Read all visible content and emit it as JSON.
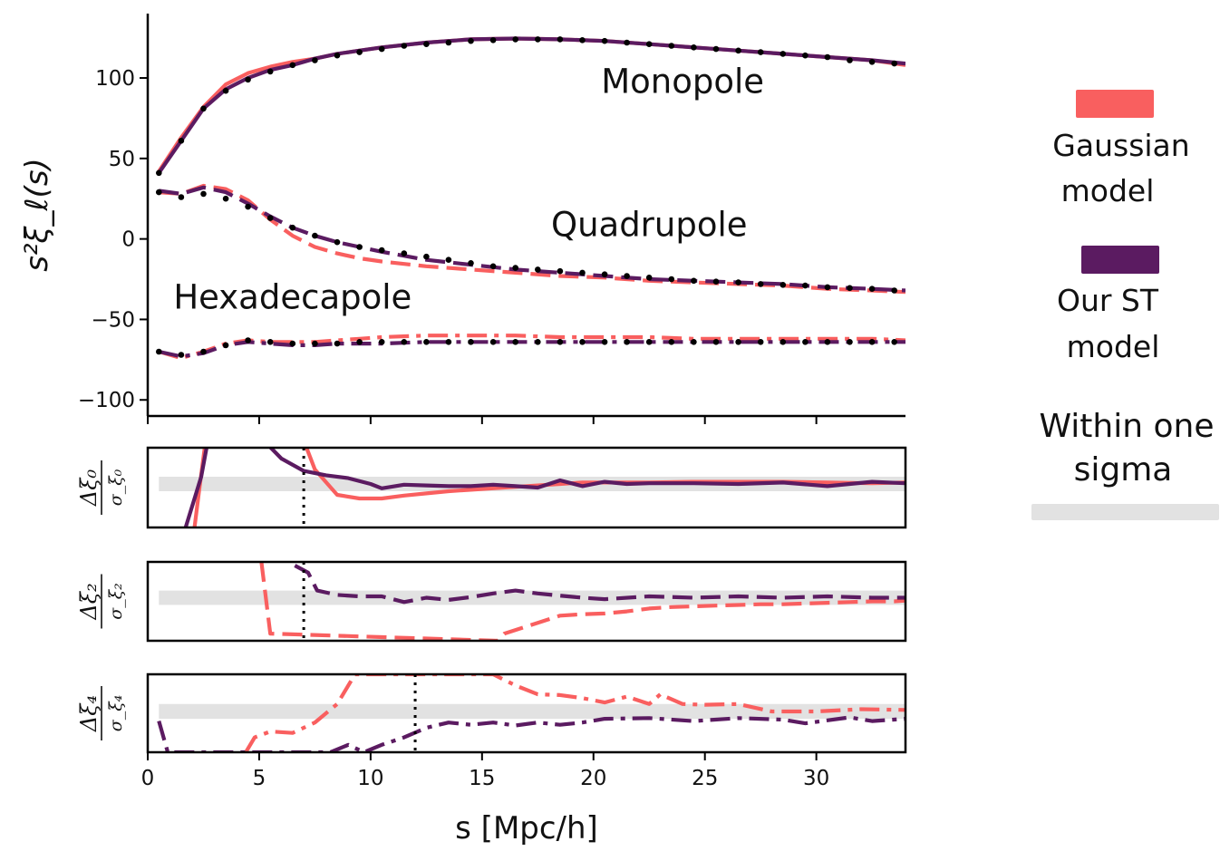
{
  "chart_data": {
    "type": "line",
    "colors": {
      "gaussian": "#f95f5f",
      "st": "#5b1b61",
      "points": "#000000",
      "band": "#e2e2e2"
    },
    "xlabel": "s [Mpc/h]",
    "xlim": [
      0,
      34
    ],
    "xticks": [
      0,
      5,
      10,
      15,
      20,
      25,
      30
    ],
    "main": {
      "ylabel": "s²ξ_ℓ(s)",
      "ylim": [
        -110,
        140
      ],
      "yticks": [
        -100,
        -50,
        0,
        50,
        100
      ],
      "ytick_labels": [
        "−100",
        "−50",
        "0",
        "50",
        "100"
      ],
      "annotations": [
        {
          "text": "Monopole",
          "x": 24,
          "y": 98
        },
        {
          "text": "Quadrupole",
          "x": 22.5,
          "y": 9
        },
        {
          "text": "Hexadecapole",
          "x": 6.5,
          "y": -36
        }
      ],
      "series": [
        {
          "name": "Monopole Gaussian",
          "model": "gaussian",
          "style": "solid",
          "x": [
            0.5,
            1.5,
            2.5,
            3.5,
            4.5,
            5.5,
            6.5,
            7.5,
            8.5,
            9.5,
            10.5,
            12.5,
            14.5,
            16.5,
            18.5,
            20.5,
            22.5,
            24.5,
            26.5,
            28.5,
            30.5,
            32.5,
            34
          ],
          "y": [
            42,
            63,
            82,
            96,
            103,
            107,
            110,
            112,
            115,
            117,
            119,
            122,
            124,
            124.5,
            124,
            123,
            121,
            119,
            117,
            115,
            113,
            111,
            108
          ]
        },
        {
          "name": "Monopole ST",
          "model": "st",
          "style": "solid",
          "x": [
            0.5,
            1.5,
            2.5,
            3.5,
            4.5,
            5.5,
            6.5,
            7.5,
            8.5,
            9.5,
            10.5,
            12.5,
            14.5,
            16.5,
            18.5,
            20.5,
            22.5,
            24.5,
            26.5,
            28.5,
            30.5,
            32.5,
            34
          ],
          "y": [
            41,
            61,
            81,
            93,
            100,
            105,
            108,
            112,
            115,
            117,
            119,
            122,
            124,
            124.5,
            124,
            123,
            121,
            119,
            117,
            115,
            113,
            111,
            109
          ]
        },
        {
          "name": "Quadrupole Gaussian",
          "model": "gaussian",
          "style": "dashed",
          "x": [
            0.5,
            1.5,
            2.5,
            3.5,
            4.5,
            5.5,
            6.5,
            7.5,
            8.5,
            9.5,
            10.5,
            12.5,
            14.5,
            16.5,
            18.5,
            20.5,
            22.5,
            24.5,
            26.5,
            28.5,
            30.5,
            32.5,
            34
          ],
          "y": [
            29,
            28,
            33,
            31,
            24,
            12,
            2,
            -5,
            -9,
            -12,
            -14,
            -17,
            -19,
            -21,
            -23,
            -24,
            -26,
            -27,
            -28,
            -29,
            -31,
            -32,
            -33
          ]
        },
        {
          "name": "Quadrupole ST",
          "model": "st",
          "style": "dashed",
          "x": [
            0.5,
            1.5,
            2.5,
            3.5,
            4.5,
            5.5,
            6.5,
            7.5,
            8.5,
            9.5,
            10.5,
            12.5,
            14.5,
            16.5,
            18.5,
            20.5,
            22.5,
            24.5,
            26.5,
            28.5,
            30.5,
            32.5,
            34
          ],
          "y": [
            30,
            28,
            32,
            29,
            22,
            14,
            7,
            2,
            -2,
            -5,
            -8,
            -13,
            -16,
            -19,
            -21,
            -23,
            -25,
            -26,
            -27,
            -28,
            -30,
            -31,
            -32
          ]
        },
        {
          "name": "Hexadecapole Gaussian",
          "model": "gaussian",
          "style": "dashdot",
          "x": [
            0.5,
            1.5,
            2.5,
            3.5,
            4.5,
            5.5,
            6.5,
            7.5,
            8.5,
            9.5,
            10.5,
            12.5,
            14.5,
            16.5,
            18.5,
            20.5,
            22.5,
            24.5,
            26.5,
            28.5,
            30.5,
            32.5,
            34
          ],
          "y": [
            -70,
            -74,
            -70,
            -65,
            -63,
            -64,
            -64,
            -64,
            -63,
            -62,
            -61,
            -60,
            -60,
            -60,
            -61,
            -61,
            -61,
            -62,
            -62,
            -62,
            -62,
            -62,
            -63
          ]
        },
        {
          "name": "Hexadecapole ST",
          "model": "st",
          "style": "dashdot",
          "x": [
            0.5,
            1.5,
            2.5,
            3.5,
            4.5,
            5.5,
            6.5,
            7.5,
            8.5,
            9.5,
            10.5,
            12.5,
            14.5,
            16.5,
            18.5,
            20.5,
            22.5,
            24.5,
            26.5,
            28.5,
            30.5,
            32.5,
            34
          ],
          "y": [
            -70,
            -73,
            -71,
            -66,
            -64,
            -65,
            -66,
            -66,
            -65,
            -65,
            -65,
            -64,
            -64,
            -64,
            -64,
            -64,
            -64,
            -64,
            -64,
            -64,
            -64,
            -64,
            -64
          ]
        }
      ],
      "data_points": [
        {
          "name": "Monopole data",
          "x": [
            0.5,
            1.5,
            2.5,
            3.5,
            4.5,
            5.5,
            6.5,
            7.5,
            8.5,
            9.5,
            10.5,
            11.5,
            12.5,
            13.5,
            14.5,
            15.5,
            16.5,
            17.5,
            18.5,
            19.5,
            20.5,
            21.5,
            22.5,
            23.5,
            24.5,
            25.5,
            26.5,
            27.5,
            28.5,
            29.5,
            30.5,
            31.5,
            32.5,
            33.5
          ],
          "y": [
            41,
            61,
            81,
            92,
            99,
            104,
            108,
            111,
            114,
            116,
            118,
            120,
            121,
            122,
            123,
            123.5,
            124,
            124,
            124,
            123.5,
            123,
            122,
            121,
            120,
            119,
            118,
            117,
            116,
            115,
            114,
            113,
            111,
            110,
            109
          ]
        },
        {
          "name": "Quadrupole data",
          "x": [
            0.5,
            1.5,
            2.5,
            3.5,
            4.5,
            5.5,
            6.5,
            7.5,
            8.5,
            9.5,
            10.5,
            11.5,
            12.5,
            13.5,
            14.5,
            15.5,
            16.5,
            17.5,
            18.5,
            19.5,
            20.5,
            21.5,
            22.5,
            23.5,
            24.5,
            25.5,
            26.5,
            27.5,
            28.5,
            29.5,
            30.5,
            31.5,
            32.5,
            33.5
          ],
          "y": [
            29,
            26,
            28,
            25,
            20,
            13,
            7,
            2,
            -2,
            -5,
            -7,
            -9,
            -11,
            -13,
            -15,
            -17,
            -18,
            -19,
            -20,
            -21,
            -22,
            -23,
            -24,
            -25,
            -26,
            -26.5,
            -27,
            -28,
            -28.5,
            -29,
            -30,
            -30.5,
            -31,
            -32
          ]
        },
        {
          "name": "Hexadecapole data",
          "x": [
            0.5,
            1.5,
            2.5,
            3.5,
            4.5,
            5.5,
            6.5,
            7.5,
            8.5,
            9.5,
            10.5,
            11.5,
            12.5,
            13.5,
            14.5,
            15.5,
            16.5,
            17.5,
            18.5,
            19.5,
            20.5,
            21.5,
            22.5,
            23.5,
            24.5,
            25.5,
            26.5,
            27.5,
            28.5,
            29.5,
            30.5,
            31.5,
            32.5,
            33.5
          ],
          "y": [
            -70,
            -72,
            -70,
            -66,
            -63,
            -64,
            -65,
            -65,
            -65,
            -64,
            -64,
            -64,
            -64,
            -64,
            -64,
            -64,
            -64,
            -64,
            -64,
            -64,
            -64,
            -64,
            -64,
            -64,
            -64,
            -64,
            -64,
            -64,
            -64,
            -64,
            -64,
            -64,
            -64,
            -64
          ]
        }
      ]
    },
    "residuals": [
      {
        "ylabel_num": "Δξ₀",
        "ylabel_den": "σ_ξ₀",
        "vline_x": 7,
        "band": [
          -1,
          1
        ],
        "ylim": [
          -6,
          5
        ],
        "series": [
          {
            "model": "gaussian",
            "style": "solid",
            "x": [
              2.1,
              2.3,
              2.6,
              7.0,
              7.5,
              8.5,
              9.5,
              10.5,
              11.5,
              12.5,
              13.5,
              14.5,
              15.5,
              16.5,
              17.5,
              18.5,
              19.5,
              20.5,
              22.5,
              24.5,
              26.5,
              28.5,
              30.5,
              32.5,
              34
            ],
            "y": [
              -6,
              -1,
              6,
              6,
              2,
              -1.5,
              -2,
              -2,
              -1.6,
              -1.3,
              -1,
              -0.8,
              -0.6,
              -0.4,
              -0.2,
              0,
              0.2,
              0.2,
              0.2,
              0.3,
              0.3,
              0.3,
              0.2,
              0.1,
              0.2
            ]
          },
          {
            "model": "st",
            "style": "solid",
            "x": [
              1.7,
              2.4,
              2.7,
              5.2,
              6.0,
              7.0,
              8.0,
              9.0,
              10.0,
              10.5,
              11.5,
              12.5,
              13.5,
              14.5,
              15.5,
              16.5,
              17.5,
              18.5,
              19.5,
              20.5,
              21.5,
              22.5,
              24.5,
              26.5,
              28.5,
              30.5,
              32.5,
              34
            ],
            "y": [
              -6,
              1,
              6,
              6,
              3.5,
              1.8,
              1.2,
              0.8,
              0,
              -0.6,
              -0.1,
              -0.2,
              -0.3,
              -0.3,
              -0.1,
              -0.3,
              -0.5,
              0.5,
              -0.3,
              0.3,
              0,
              0.1,
              0.1,
              0,
              0.2,
              -0.3,
              0.3,
              0.1
            ]
          }
        ]
      },
      {
        "ylabel_num": "Δξ₂",
        "ylabel_den": "σ_ξ₂",
        "vline_x": 7,
        "band": [
          -1,
          1
        ],
        "ylim": [
          -6,
          5
        ],
        "series": [
          {
            "model": "gaussian",
            "style": "dashed",
            "x": [
              5.1,
              5.5,
              15.7,
              16.0,
              17.0,
              18.0,
              18.5,
              19.5,
              20.5,
              21.5,
              22.5,
              23.5,
              24.5,
              25.5,
              26.5,
              27.5,
              28.5,
              29.5,
              30.5,
              31.5,
              32.5,
              33.5,
              34
            ],
            "y": [
              5,
              -5,
              -6,
              -5,
              -4,
              -3,
              -2.5,
              -2.3,
              -2.2,
              -1.9,
              -1.5,
              -1.3,
              -1.2,
              -1.1,
              -1,
              -0.9,
              -0.9,
              -0.8,
              -0.7,
              -0.6,
              -0.5,
              -0.5,
              -0.4
            ]
          },
          {
            "model": "st",
            "style": "dashed",
            "x": [
              6.6,
              7.2,
              7.6,
              8.5,
              9.5,
              10.5,
              11.5,
              12.5,
              13.5,
              14.5,
              15.5,
              16.5,
              17.5,
              18.5,
              19.5,
              20.5,
              22.5,
              24.5,
              26.5,
              28.5,
              30.5,
              32.5,
              34
            ],
            "y": [
              4.5,
              3.5,
              1,
              0.4,
              0.2,
              0.2,
              -0.6,
              0,
              -0.3,
              0.1,
              0.6,
              1,
              0.6,
              0.3,
              0,
              -0.2,
              0.2,
              0,
              0.2,
              0,
              0.2,
              0,
              0
            ]
          }
        ]
      },
      {
        "ylabel_num": "Δξ₄",
        "ylabel_den": "σ_ξ₄",
        "vline_x": 12,
        "band": [
          -1,
          1
        ],
        "ylim": [
          -5.5,
          5
        ],
        "series": [
          {
            "model": "gaussian",
            "style": "dashdot",
            "x": [
              4.4,
              4.8,
              5.5,
              6.5,
              7.5,
              8.5,
              9.3,
              15.5,
              16.5,
              17.5,
              18.5,
              19.5,
              20.5,
              21.5,
              22.5,
              23.0,
              24.0,
              25.0,
              26.5,
              28.0,
              30.0,
              32.0,
              34
            ],
            "y": [
              -5.5,
              -3.5,
              -2.7,
              -2.9,
              -1.5,
              1,
              5,
              5,
              3.5,
              2.3,
              2.2,
              1.8,
              1.2,
              2,
              1,
              2.3,
              1,
              0.9,
              1,
              0,
              0,
              0.3,
              0.2
            ]
          },
          {
            "model": "st",
            "style": "dashdot",
            "x": [
              0.5,
              0.9,
              8.2,
              9.0,
              9.7,
              10.5,
              11.5,
              12.5,
              13.5,
              14.5,
              15.5,
              16.5,
              17.5,
              18.5,
              19.5,
              20.5,
              22.5,
              24.5,
              26.5,
              28.5,
              29.5,
              31.5,
              32.5,
              34
            ],
            "y": [
              -1.3,
              -5.5,
              -5.5,
              -4.5,
              -5.5,
              -4.5,
              -3.5,
              -2.2,
              -1.5,
              -1.8,
              -1.5,
              -1.9,
              -1.5,
              -1.8,
              -1.5,
              -1,
              -0.9,
              -1.3,
              -0.9,
              -1.1,
              -1.6,
              -0.8,
              -1.3,
              -1
            ]
          }
        ]
      }
    ],
    "legend": {
      "placement": "right",
      "entries": [
        {
          "label_lines": [
            "Gaussian",
            "model"
          ],
          "model": "gaussian"
        },
        {
          "label_lines": [
            "Our ST",
            "model"
          ],
          "model": "st"
        },
        {
          "label_lines": [
            "Within one",
            "sigma"
          ],
          "model": "band"
        }
      ]
    }
  }
}
